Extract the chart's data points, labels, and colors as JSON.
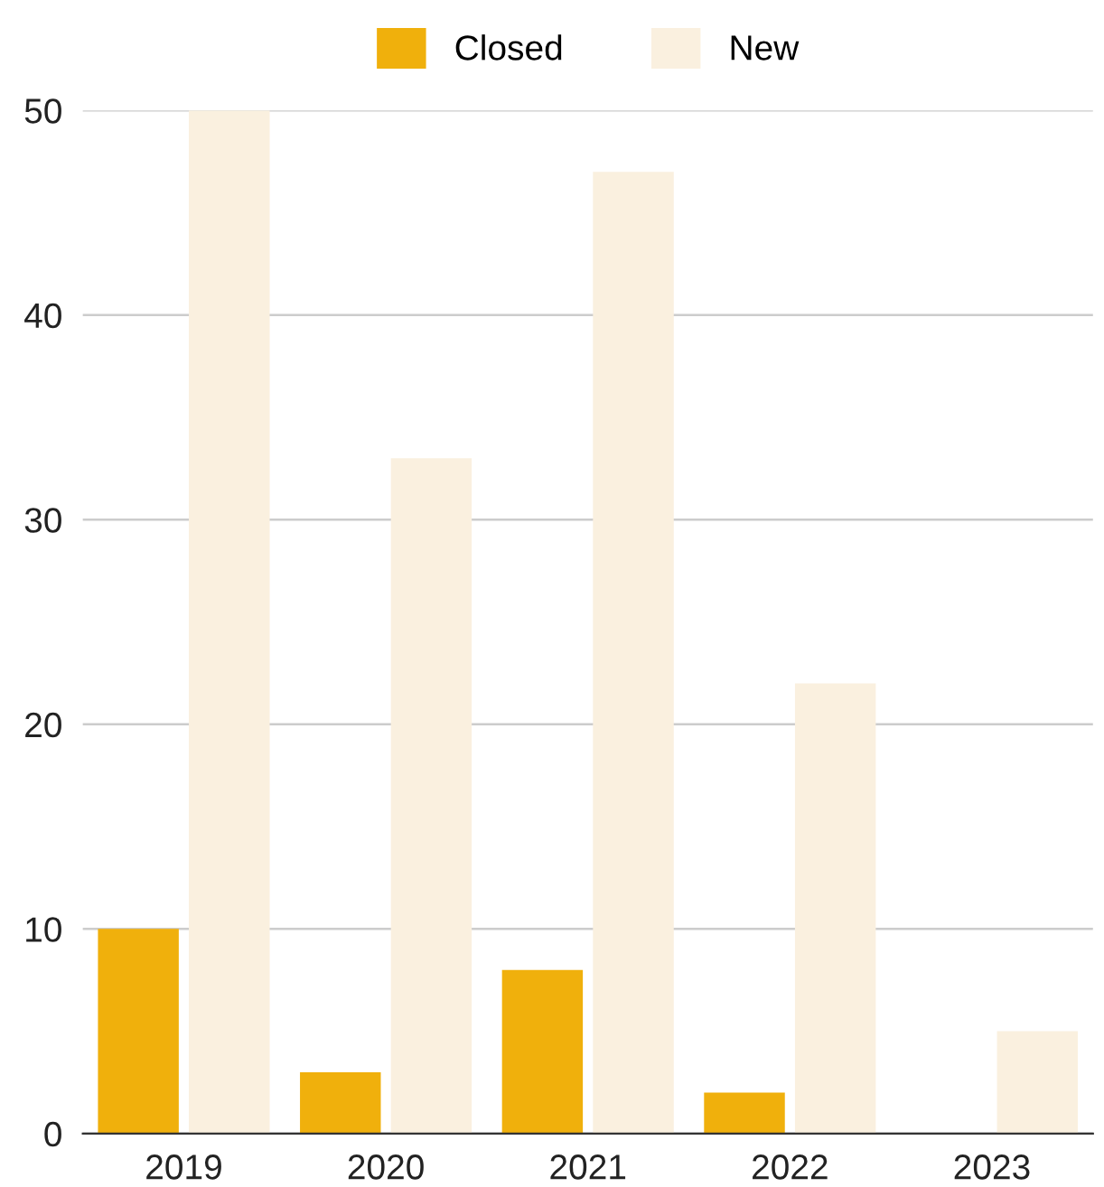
{
  "chart_data": {
    "type": "bar",
    "categories": [
      "2019",
      "2020",
      "2021",
      "2022",
      "2023"
    ],
    "series": [
      {
        "name": "Closed",
        "color": "#f0b00c",
        "values": [
          10,
          3,
          8,
          2,
          0
        ]
      },
      {
        "name": "New",
        "color": "#faf0df",
        "values": [
          50,
          33,
          47,
          22,
          5
        ]
      }
    ],
    "ylim": [
      0,
      50
    ],
    "yticks": [
      0,
      10,
      20,
      30,
      40,
      50
    ],
    "grid": "y",
    "legend": "top"
  }
}
